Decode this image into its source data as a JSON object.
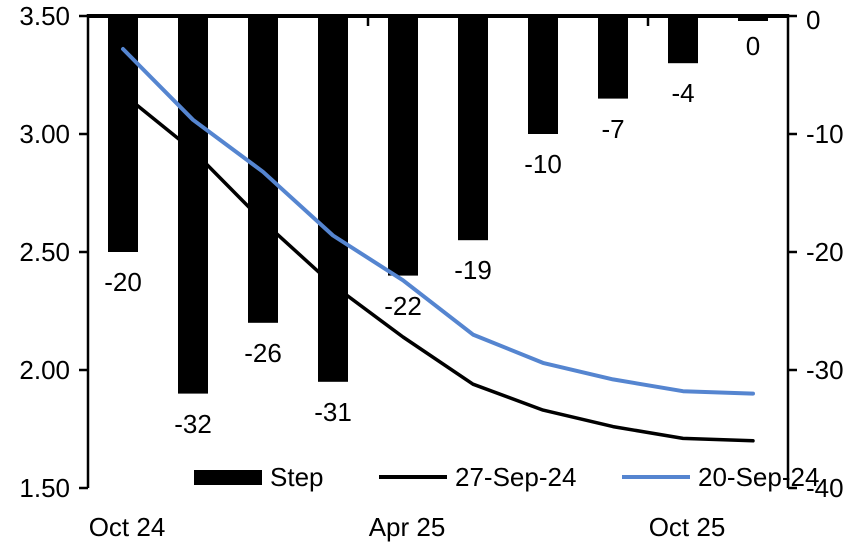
{
  "chart_data": {
    "type": "combo",
    "description": "Policy rate path chart: black bars show per-meeting step changes (bps, right axis) and two lines show implied rate paths (%, left axis) as of two dates.",
    "categories": [
      1,
      2,
      3,
      4,
      5,
      6,
      7,
      8,
      9,
      10
    ],
    "series": [
      {
        "name": "Step",
        "type": "bar",
        "axis": "right",
        "color": "#000000",
        "values": [
          -20,
          -32,
          -26,
          -31,
          -22,
          -19,
          -10,
          -7,
          -4,
          0
        ]
      },
      {
        "name": "27-Sep-24",
        "type": "line",
        "axis": "left",
        "color": "#000000",
        "values": [
          3.17,
          2.93,
          2.63,
          2.36,
          2.14,
          1.94,
          1.83,
          1.76,
          1.71,
          1.7
        ]
      },
      {
        "name": "20-Sep-24",
        "type": "line",
        "axis": "left",
        "color": "#5585D0",
        "values": [
          3.36,
          3.06,
          2.84,
          2.57,
          2.38,
          2.15,
          2.03,
          1.96,
          1.91,
          1.9
        ]
      }
    ],
    "bar_data_labels": [
      "-20",
      "-32",
      "-26",
      "-31",
      "-22",
      "-19",
      "-10",
      "-7",
      "-4",
      "0"
    ],
    "left_axis": {
      "min": 1.5,
      "max": 3.5,
      "tick_labels": [
        "3.50",
        "3.00",
        "2.50",
        "2.00",
        "1.50"
      ]
    },
    "right_axis": {
      "min": -40,
      "max": 0,
      "tick_labels": [
        "0",
        "-10",
        "-20",
        "-30",
        "-40"
      ]
    },
    "x_axis": {
      "tick_labels": [
        {
          "label": "Oct 24",
          "category_index": 0
        },
        {
          "label": "Apr 25",
          "category_index": 4
        },
        {
          "label": "Oct 25",
          "category_index": 8
        }
      ],
      "minor_tick_category_boundaries": [
        4,
        8
      ]
    },
    "legend": {
      "position": "bottom",
      "items": [
        {
          "label": "Step",
          "swatch": "bar",
          "color": "#000000"
        },
        {
          "label": "27-Sep-24",
          "swatch": "line",
          "color": "#000000"
        },
        {
          "label": "20-Sep-24",
          "swatch": "line",
          "color": "#5585D0"
        }
      ]
    },
    "grid": false,
    "title": ""
  },
  "colors": {
    "bar": "#000000",
    "line_black": "#000000",
    "line_blue": "#5585D0",
    "axis": "#000000",
    "background": "#ffffff"
  }
}
